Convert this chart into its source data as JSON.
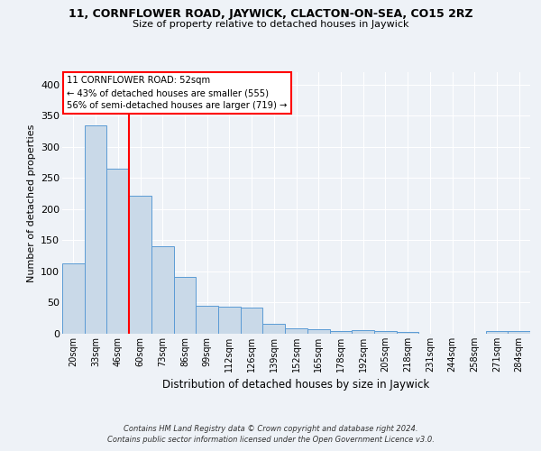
{
  "title_line1": "11, CORNFLOWER ROAD, JAYWICK, CLACTON-ON-SEA, CO15 2RZ",
  "title_line2": "Size of property relative to detached houses in Jaywick",
  "xlabel": "Distribution of detached houses by size in Jaywick",
  "ylabel": "Number of detached properties",
  "categories": [
    "20sqm",
    "33sqm",
    "46sqm",
    "60sqm",
    "73sqm",
    "86sqm",
    "99sqm",
    "112sqm",
    "126sqm",
    "139sqm",
    "152sqm",
    "165sqm",
    "178sqm",
    "192sqm",
    "205sqm",
    "218sqm",
    "231sqm",
    "244sqm",
    "258sqm",
    "271sqm",
    "284sqm"
  ],
  "values": [
    113,
    335,
    265,
    222,
    140,
    91,
    45,
    43,
    42,
    16,
    9,
    7,
    5,
    6,
    5,
    3,
    0,
    0,
    0,
    4,
    4
  ],
  "bar_color": "#c9d9e8",
  "bar_edge_color": "#5b9bd5",
  "red_line_x": 2.5,
  "annotation_line1": "11 CORNFLOWER ROAD: 52sqm",
  "annotation_line2": "← 43% of detached houses are smaller (555)",
  "annotation_line3": "56% of semi-detached houses are larger (719) →",
  "annotation_box_color": "white",
  "annotation_box_edge_color": "red",
  "footer_line1": "Contains HM Land Registry data © Crown copyright and database right 2024.",
  "footer_line2": "Contains public sector information licensed under the Open Government Licence v3.0.",
  "ylim": [
    0,
    420
  ],
  "yticks": [
    0,
    50,
    100,
    150,
    200,
    250,
    300,
    350,
    400
  ],
  "bg_color": "#eef2f7",
  "grid_color": "white"
}
